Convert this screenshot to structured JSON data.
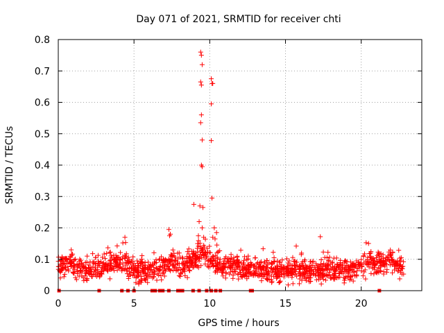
{
  "chart_data": {
    "type": "scatter",
    "title": "Day 071 of 2021, SRMTID for receiver chti",
    "xlabel": "GPS time / hours",
    "ylabel": "SRMTID / TECUs",
    "xlim": [
      0,
      24
    ],
    "ylim": [
      0,
      0.8
    ],
    "xticks": [
      0,
      5,
      10,
      15,
      20
    ],
    "xtick_labels": [
      "0",
      "5",
      "10",
      "15",
      "20"
    ],
    "yticks": [
      0,
      0.1,
      0.2,
      0.3,
      0.4,
      0.5,
      0.6,
      0.7,
      0.8
    ],
    "ytick_labels": [
      "0",
      "0.1",
      "0.2",
      "0.3",
      "0.4",
      "0.5",
      "0.6",
      "0.7",
      "0.8"
    ],
    "grid": true,
    "marker": "plus",
    "color": "#ff0000",
    "data_span_hours": [
      0,
      22.8
    ],
    "baseline_trend": [
      [
        0.0,
        0.075
      ],
      [
        0.5,
        0.085
      ],
      [
        1.0,
        0.09
      ],
      [
        1.5,
        0.07
      ],
      [
        2.0,
        0.065
      ],
      [
        2.5,
        0.07
      ],
      [
        3.0,
        0.075
      ],
      [
        3.5,
        0.08
      ],
      [
        4.0,
        0.085
      ],
      [
        4.5,
        0.09
      ],
      [
        5.0,
        0.07
      ],
      [
        5.5,
        0.06
      ],
      [
        6.0,
        0.06
      ],
      [
        6.5,
        0.07
      ],
      [
        7.0,
        0.08
      ],
      [
        7.5,
        0.09
      ],
      [
        8.0,
        0.07
      ],
      [
        8.5,
        0.085
      ],
      [
        9.0,
        0.1
      ],
      [
        9.5,
        0.12
      ],
      [
        10.0,
        0.1
      ],
      [
        10.5,
        0.085
      ],
      [
        11.0,
        0.08
      ],
      [
        11.5,
        0.08
      ],
      [
        12.0,
        0.07
      ],
      [
        12.5,
        0.07
      ],
      [
        13.0,
        0.065
      ],
      [
        13.5,
        0.065
      ],
      [
        14.0,
        0.065
      ],
      [
        14.5,
        0.065
      ],
      [
        15.0,
        0.06
      ],
      [
        15.5,
        0.06
      ],
      [
        16.0,
        0.06
      ],
      [
        16.5,
        0.06
      ],
      [
        17.0,
        0.06
      ],
      [
        17.5,
        0.065
      ],
      [
        18.0,
        0.07
      ],
      [
        18.5,
        0.07
      ],
      [
        19.0,
        0.065
      ],
      [
        19.5,
        0.065
      ],
      [
        20.0,
        0.08
      ],
      [
        20.5,
        0.09
      ],
      [
        21.0,
        0.085
      ],
      [
        21.5,
        0.09
      ],
      [
        22.0,
        0.1
      ],
      [
        22.5,
        0.075
      ],
      [
        22.8,
        0.065
      ]
    ],
    "spike_points": [
      [
        9.4,
        0.76
      ],
      [
        9.45,
        0.75
      ],
      [
        9.5,
        0.72
      ],
      [
        9.4,
        0.665
      ],
      [
        9.45,
        0.655
      ],
      [
        9.45,
        0.56
      ],
      [
        9.4,
        0.535
      ],
      [
        9.5,
        0.48
      ],
      [
        9.45,
        0.4
      ],
      [
        9.5,
        0.395
      ],
      [
        9.35,
        0.27
      ],
      [
        9.55,
        0.265
      ],
      [
        9.5,
        0.2
      ],
      [
        9.6,
        0.17
      ],
      [
        9.3,
        0.22
      ],
      [
        9.2,
        0.15
      ],
      [
        9.25,
        0.175
      ],
      [
        10.1,
        0.675
      ],
      [
        10.15,
        0.66
      ],
      [
        10.2,
        0.66
      ],
      [
        10.1,
        0.595
      ],
      [
        10.1,
        0.478
      ],
      [
        10.15,
        0.295
      ],
      [
        10.3,
        0.2
      ],
      [
        10.45,
        0.185
      ],
      [
        10.2,
        0.17
      ],
      [
        10.35,
        0.165
      ],
      [
        7.3,
        0.195
      ],
      [
        7.35,
        0.175
      ],
      [
        7.4,
        0.18
      ],
      [
        4.4,
        0.17
      ],
      [
        17.3,
        0.172
      ],
      [
        8.95,
        0.275
      ]
    ],
    "zero_points": [
      0.05,
      2.7,
      4.2,
      4.6,
      5.0,
      6.2,
      6.4,
      6.7,
      6.9,
      7.3,
      7.9,
      8.1,
      8.2,
      8.9,
      9.3,
      9.8,
      10.1,
      10.4,
      10.7,
      12.7,
      12.8,
      21.2
    ]
  }
}
